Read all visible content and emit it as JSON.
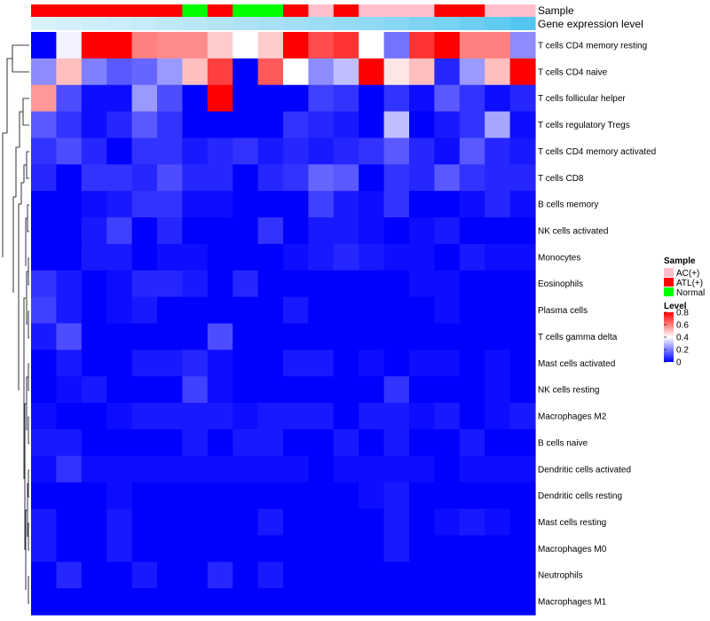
{
  "chart_data": {
    "type": "heatmap",
    "title": "",
    "annotation_tracks": [
      {
        "name": "Sample",
        "values": [
          "ATL(+)",
          "ATL(+)",
          "ATL(+)",
          "ATL(+)",
          "ATL(+)",
          "ATL(+)",
          "Normal",
          "ATL(+)",
          "Normal",
          "Normal",
          "ATL(+)",
          "AC(+)",
          "ATL(+)",
          "AC(+)",
          "AC(+)",
          "AC(+)",
          "ATL(+)",
          "ATL(+)",
          "AC(+)",
          "AC(+)"
        ]
      },
      {
        "name": "Gene expression level",
        "values": [
          0.05,
          0.08,
          0.12,
          0.15,
          0.18,
          0.22,
          0.26,
          0.3,
          0.34,
          0.38,
          0.42,
          0.46,
          0.5,
          0.55,
          0.6,
          0.65,
          0.7,
          0.78,
          0.86,
          0.95
        ]
      }
    ],
    "rows": [
      "T cells CD4 memory resting",
      "T cells CD4 naive",
      "T cells follicular helper",
      "T cells regulatory  Tregs",
      "T cells CD4 memory activated",
      "T cells CD8",
      "B cells memory",
      "NK cells activated",
      "Monocytes",
      "Eosinophils",
      "Plasma cells",
      "T cells gamma delta",
      "Mast cells activated",
      "NK cells resting",
      "Macrophages M2",
      "B cells naive",
      "Dendritic cells activated",
      "Dendritic cells resting",
      "Mast cells resting",
      "Macrophages M0",
      "Neutrophils",
      "Macrophages M1"
    ],
    "values": [
      [
        0.0,
        0.38,
        0.8,
        0.8,
        0.6,
        0.58,
        0.58,
        0.48,
        0.4,
        0.48,
        0.8,
        0.68,
        0.72,
        0.4,
        0.18,
        0.72,
        0.8,
        0.6,
        0.6,
        0.22
      ],
      [
        0.22,
        0.5,
        0.2,
        0.14,
        0.16,
        0.24,
        0.5,
        0.7,
        0.0,
        0.66,
        0.4,
        0.22,
        0.3,
        0.8,
        0.44,
        0.5,
        0.06,
        0.24,
        0.5,
        0.8
      ],
      [
        0.56,
        0.12,
        0.02,
        0.02,
        0.24,
        0.12,
        0.0,
        0.8,
        0.0,
        0.0,
        0.0,
        0.1,
        0.08,
        0.0,
        0.08,
        0.02,
        0.14,
        0.08,
        0.02,
        0.06
      ],
      [
        0.14,
        0.08,
        0.02,
        0.06,
        0.14,
        0.08,
        0.0,
        0.0,
        0.0,
        0.0,
        0.08,
        0.06,
        0.04,
        0.0,
        0.3,
        0.0,
        0.04,
        0.08,
        0.26,
        0.02
      ],
      [
        0.08,
        0.12,
        0.06,
        0.0,
        0.08,
        0.08,
        0.04,
        0.06,
        0.08,
        0.04,
        0.06,
        0.04,
        0.06,
        0.08,
        0.14,
        0.06,
        0.02,
        0.14,
        0.06,
        0.04
      ],
      [
        0.06,
        0.0,
        0.08,
        0.08,
        0.06,
        0.12,
        0.06,
        0.06,
        0.0,
        0.06,
        0.08,
        0.16,
        0.14,
        0.0,
        0.08,
        0.06,
        0.14,
        0.08,
        0.06,
        0.06
      ],
      [
        0.0,
        0.0,
        0.02,
        0.04,
        0.08,
        0.08,
        0.02,
        0.02,
        0.0,
        0.0,
        0.0,
        0.1,
        0.04,
        0.02,
        0.08,
        0.0,
        0.0,
        0.02,
        0.06,
        0.02
      ],
      [
        0.0,
        0.0,
        0.04,
        0.1,
        0.0,
        0.06,
        0.0,
        0.0,
        0.0,
        0.08,
        0.0,
        0.04,
        0.04,
        0.02,
        0.0,
        0.02,
        0.04,
        0.0,
        0.0,
        0.0
      ],
      [
        0.0,
        0.0,
        0.04,
        0.04,
        0.0,
        0.02,
        0.02,
        0.0,
        0.0,
        0.0,
        0.02,
        0.04,
        0.06,
        0.04,
        0.02,
        0.02,
        0.0,
        0.04,
        0.02,
        0.02
      ],
      [
        0.08,
        0.04,
        0.0,
        0.02,
        0.06,
        0.06,
        0.04,
        0.0,
        0.06,
        0.0,
        0.0,
        0.0,
        0.0,
        0.0,
        0.0,
        0.02,
        0.02,
        0.0,
        0.0,
        0.0
      ],
      [
        0.1,
        0.04,
        0.0,
        0.02,
        0.04,
        0.0,
        0.0,
        0.0,
        0.0,
        0.0,
        0.04,
        0.0,
        0.0,
        0.0,
        0.0,
        0.0,
        0.02,
        0.0,
        0.0,
        0.0
      ],
      [
        0.04,
        0.12,
        0.0,
        0.0,
        0.0,
        0.0,
        0.0,
        0.12,
        0.0,
        0.0,
        0.0,
        0.0,
        0.0,
        0.0,
        0.0,
        0.0,
        0.0,
        0.0,
        0.0,
        0.0
      ],
      [
        0.0,
        0.04,
        0.0,
        0.0,
        0.04,
        0.04,
        0.06,
        0.02,
        0.0,
        0.0,
        0.04,
        0.04,
        0.0,
        0.02,
        0.0,
        0.02,
        0.02,
        0.0,
        0.02,
        0.0
      ],
      [
        0.0,
        0.02,
        0.04,
        0.0,
        0.0,
        0.0,
        0.1,
        0.02,
        0.0,
        0.0,
        0.0,
        0.0,
        0.0,
        0.0,
        0.08,
        0.0,
        0.0,
        0.0,
        0.02,
        0.0
      ],
      [
        0.02,
        0.0,
        0.0,
        0.02,
        0.04,
        0.04,
        0.04,
        0.04,
        0.02,
        0.04,
        0.04,
        0.04,
        0.0,
        0.04,
        0.04,
        0.02,
        0.04,
        0.0,
        0.02,
        0.04
      ],
      [
        0.04,
        0.04,
        0.0,
        0.0,
        0.0,
        0.0,
        0.04,
        0.0,
        0.04,
        0.04,
        0.0,
        0.0,
        0.04,
        0.0,
        0.04,
        0.0,
        0.0,
        0.04,
        0.0,
        0.0
      ],
      [
        0.02,
        0.08,
        0.02,
        0.02,
        0.02,
        0.02,
        0.02,
        0.02,
        0.02,
        0.02,
        0.02,
        0.0,
        0.02,
        0.02,
        0.02,
        0.02,
        0.0,
        0.02,
        0.02,
        0.02
      ],
      [
        0.0,
        0.0,
        0.0,
        0.02,
        0.0,
        0.0,
        0.0,
        0.0,
        0.0,
        0.0,
        0.0,
        0.0,
        0.0,
        0.02,
        0.04,
        0.0,
        0.0,
        0.0,
        0.0,
        0.0
      ],
      [
        0.04,
        0.0,
        0.0,
        0.04,
        0.0,
        0.0,
        0.0,
        0.0,
        0.0,
        0.04,
        0.0,
        0.0,
        0.0,
        0.0,
        0.04,
        0.0,
        0.02,
        0.04,
        0.02,
        0.0
      ],
      [
        0.04,
        0.0,
        0.0,
        0.04,
        0.0,
        0.0,
        0.0,
        0.0,
        0.0,
        0.0,
        0.0,
        0.0,
        0.0,
        0.0,
        0.04,
        0.0,
        0.0,
        0.0,
        0.0,
        0.0
      ],
      [
        0.0,
        0.06,
        0.0,
        0.0,
        0.04,
        0.0,
        0.0,
        0.06,
        0.0,
        0.04,
        0.0,
        0.0,
        0.0,
        0.0,
        0.0,
        0.0,
        0.0,
        0.0,
        0.0,
        0.0
      ],
      [
        0.0,
        0.0,
        0.0,
        0.0,
        0.0,
        0.0,
        0.0,
        0.0,
        0.0,
        0.0,
        0.0,
        0.0,
        0.0,
        0.0,
        0.0,
        0.0,
        0.0,
        0.0,
        0.0,
        0.0
      ]
    ],
    "color_scale": {
      "min": 0,
      "max": 0.8,
      "low": "#0000ff",
      "mid": "#ffffff",
      "high": "#ff0000",
      "mid_value": 0.4
    },
    "annotation_colors": {
      "Sample": {
        "AC(+)": "#ffc0cb",
        "ATL(+)": "#ff0000",
        "Normal": "#00ff00"
      },
      "Gene expression level": {
        "low": "#e0f4fb",
        "high": "#4cc3ef"
      }
    },
    "legend": {
      "placement": "right",
      "sample_title": "Sample",
      "sample_entries": [
        "AC(+)",
        "ATL(+)",
        "Normal"
      ],
      "level_title": "Level",
      "level_ticks": [
        "0.8",
        "0.6",
        "0.4",
        "0.2",
        "0"
      ],
      "level_tick_values": [
        0.8,
        0.6,
        0.4,
        0.2,
        0
      ]
    },
    "row_dendrogram": true
  }
}
